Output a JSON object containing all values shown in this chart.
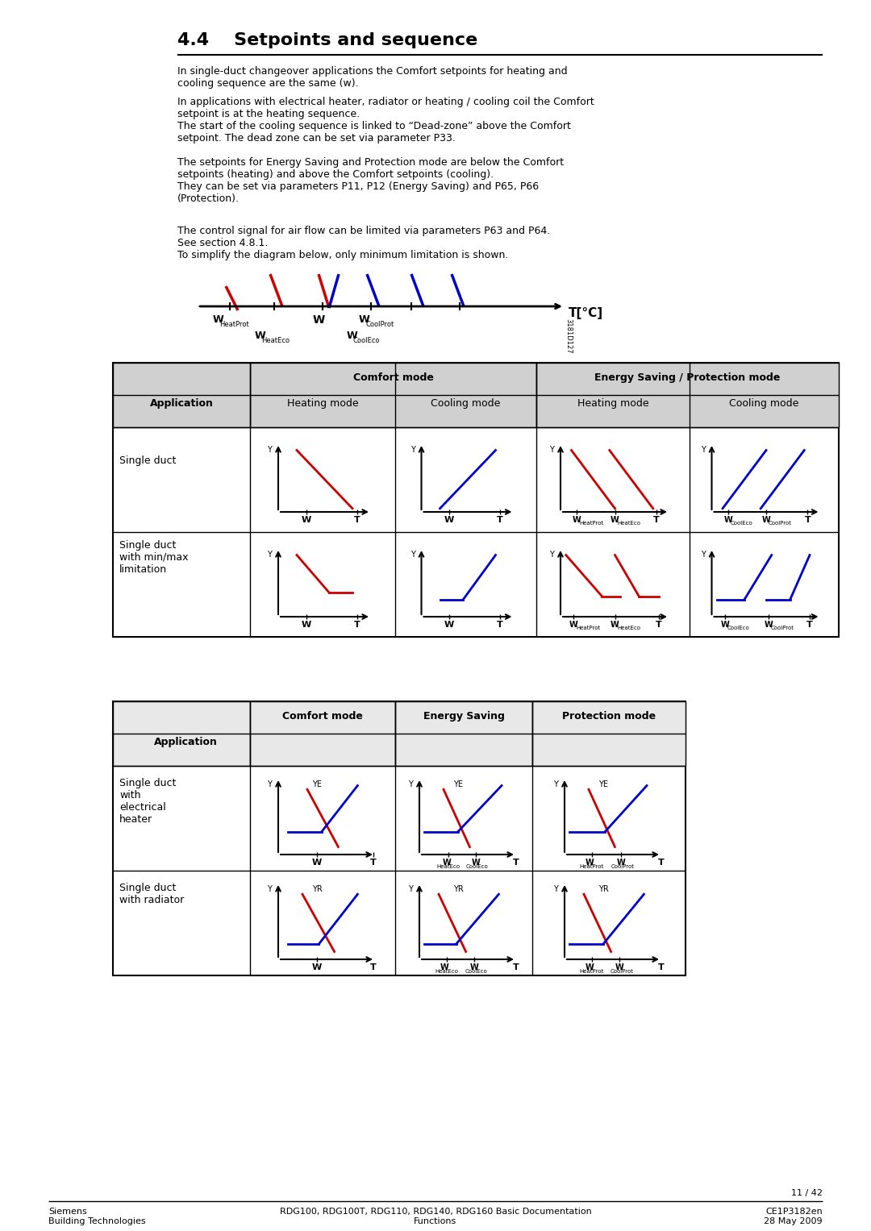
{
  "title": "4.4    Setpoints and sequence",
  "bg_color": "#ffffff",
  "text_color": "#000000",
  "red": "#cc0000",
  "blue": "#0000cc",
  "black": "#000000",
  "gray_header": "#d0d0d0",
  "gray_cell": "#e8e8e8",
  "para1": "In single-duct changeover applications the Comfort setpoints for heating and\ncooling sequence are the same (w).",
  "para2": "In applications with electrical heater, radiator or heating / cooling coil the Comfort\nsetpoint is at the heating sequence.\nThe start of the cooling sequence is linked to “Dead-zone” above the Comfort\nsetpoint. The dead zone can be set via parameter P33.",
  "para3": "The setpoints for Energy Saving and Protection mode are below the Comfort\nsetpoints (heating) and above the Comfort setpoints (cooling).\nThey can be set via parameters P11, P12 (Energy Saving) and P65, P66\n(Protection).",
  "para4": "The control signal for air flow can be limited via parameters P63 and P64.\nSee section 4.8.1.\nTo simplify the diagram below, only minimum limitation is shown.",
  "footer_left1": "Siemens",
  "footer_left2": "Building Technologies",
  "footer_mid1": "RDG100, RDG100T, RDG110, RDG140, RDG160 Basic Documentation",
  "footer_mid2": "Functions",
  "footer_right1": "CE1P3182en",
  "footer_right2": "28 May 2009",
  "footer_page": "11 / 42"
}
